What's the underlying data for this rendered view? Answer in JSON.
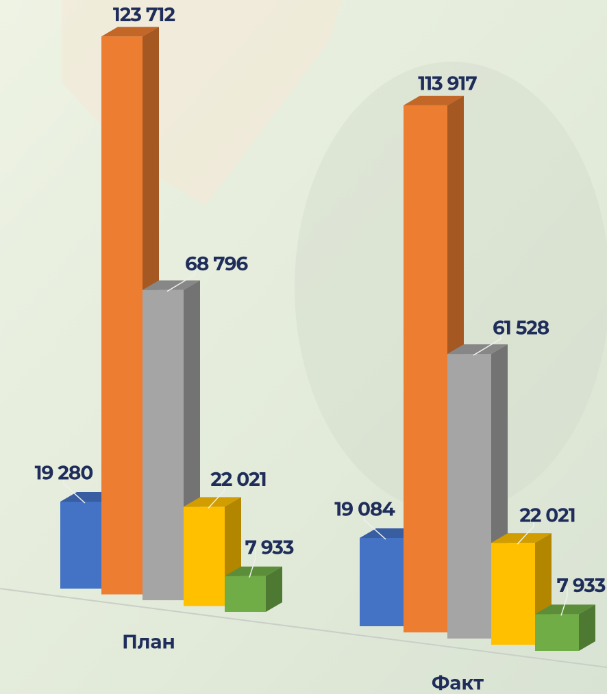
{
  "chart_data": {
    "type": "bar",
    "categories": [
      "План",
      "Факт"
    ],
    "series": [
      {
        "color": "#4472c4",
        "values": [
          19280,
          19084
        ],
        "value_labels": [
          "19 280",
          "19 084"
        ]
      },
      {
        "color": "#ed7d31",
        "values": [
          123712,
          113917
        ],
        "value_labels": [
          "123 712",
          "113 917"
        ]
      },
      {
        "color": "#a5a5a5",
        "values": [
          68796,
          61528
        ],
        "value_labels": [
          "68 796",
          "61 528"
        ]
      },
      {
        "color": "#ffc000",
        "values": [
          22021,
          22021
        ],
        "value_labels": [
          "22 021",
          "22 021"
        ]
      },
      {
        "color": "#70ad47",
        "values": [
          7933,
          7933
        ],
        "value_labels": [
          "7 933",
          "7 933"
        ]
      }
    ]
  }
}
